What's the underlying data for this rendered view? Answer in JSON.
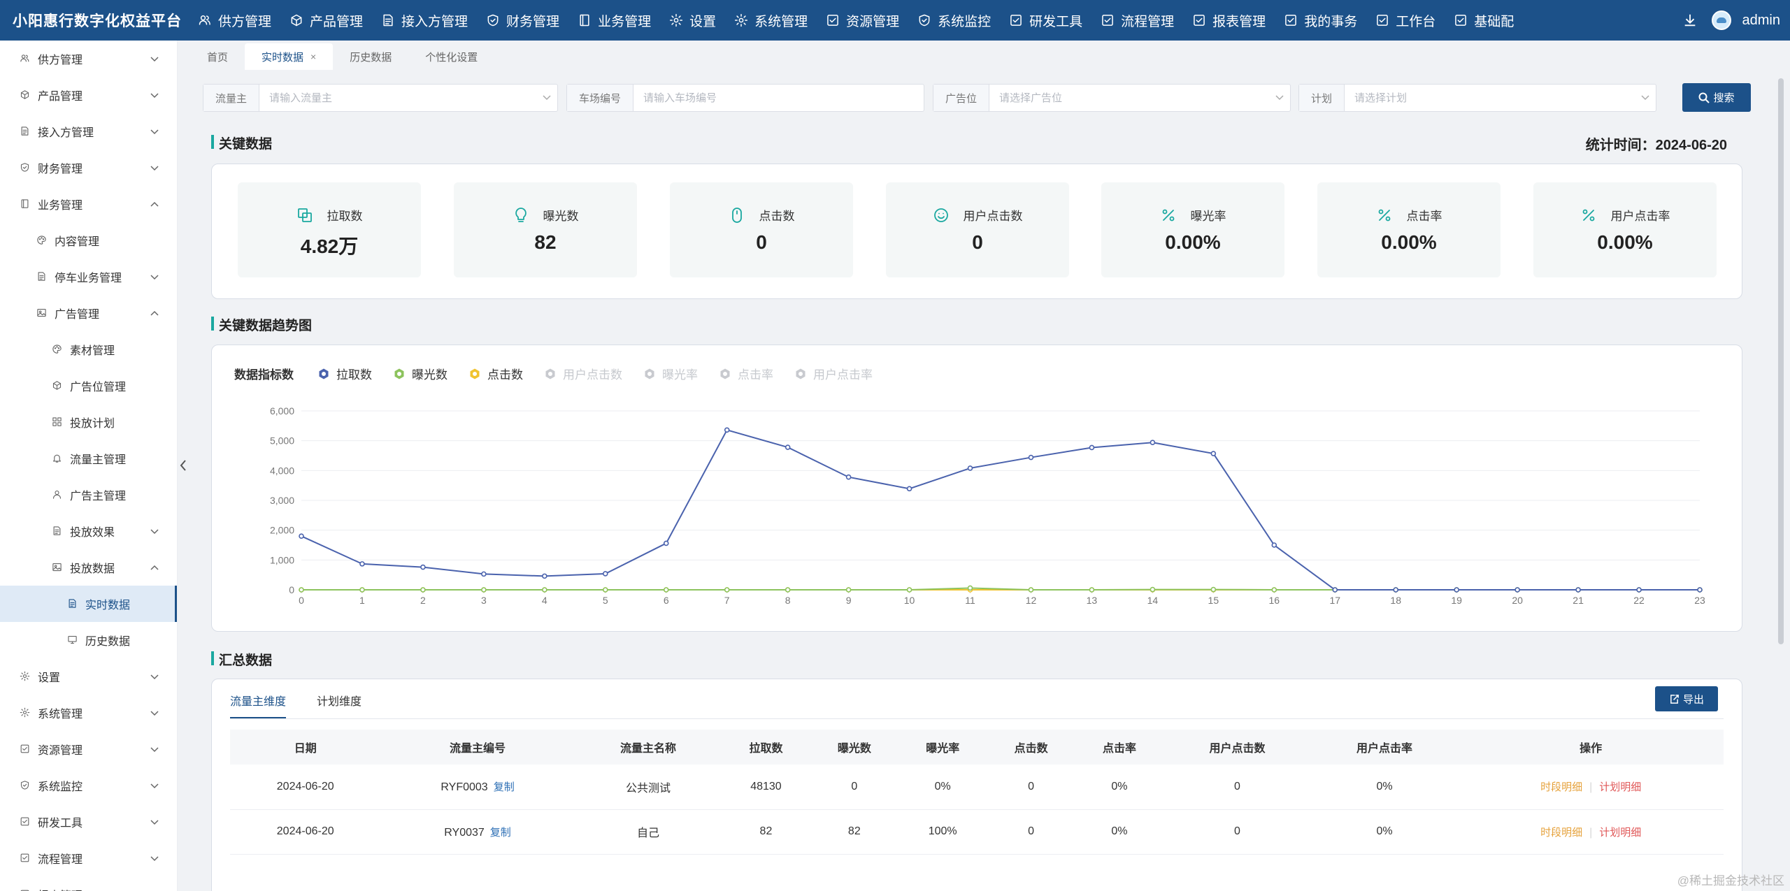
{
  "app": {
    "brand": "小阳惠行数字化权益平台",
    "username": "admin"
  },
  "top_nav": [
    {
      "label": "供方管理",
      "icon": "users-icon"
    },
    {
      "label": "产品管理",
      "icon": "cube-icon"
    },
    {
      "label": "接入方管理",
      "icon": "doc-icon"
    },
    {
      "label": "财务管理",
      "icon": "shield-icon"
    },
    {
      "label": "业务管理",
      "icon": "book-icon"
    },
    {
      "label": "设置",
      "icon": "gear-icon"
    },
    {
      "label": "系统管理",
      "icon": "gear-icon"
    },
    {
      "label": "资源管理",
      "icon": "checkbox-icon"
    },
    {
      "label": "系统监控",
      "icon": "shield-icon"
    },
    {
      "label": "研发工具",
      "icon": "checkbox-icon"
    },
    {
      "label": "流程管理",
      "icon": "checkbox-icon"
    },
    {
      "label": "报表管理",
      "icon": "checkbox-icon"
    },
    {
      "label": "我的事务",
      "icon": "checkbox-icon"
    },
    {
      "label": "工作台",
      "icon": "checkbox-icon"
    },
    {
      "label": "基础配",
      "icon": "checkbox-icon"
    }
  ],
  "sidebar": {
    "items": [
      {
        "label": "供方管理",
        "level": 0,
        "icon": "users-icon",
        "chevron": "down"
      },
      {
        "label": "产品管理",
        "level": 0,
        "icon": "cube-icon",
        "chevron": "down"
      },
      {
        "label": "接入方管理",
        "level": 0,
        "icon": "doc-icon",
        "chevron": "down"
      },
      {
        "label": "财务管理",
        "level": 0,
        "icon": "shield-icon",
        "chevron": "down"
      },
      {
        "label": "业务管理",
        "level": 0,
        "icon": "book-icon",
        "chevron": "up"
      },
      {
        "label": "内容管理",
        "level": 1,
        "icon": "palette-icon",
        "chevron": ""
      },
      {
        "label": "停车业务管理",
        "level": 1,
        "icon": "doc-icon",
        "chevron": "down"
      },
      {
        "label": "广告管理",
        "level": 1,
        "icon": "image-icon",
        "chevron": "up"
      },
      {
        "label": "素材管理",
        "level": 2,
        "icon": "palette-icon",
        "chevron": ""
      },
      {
        "label": "广告位管理",
        "level": 2,
        "icon": "cube-icon",
        "chevron": ""
      },
      {
        "label": "投放计划",
        "level": 2,
        "icon": "grid-icon",
        "chevron": ""
      },
      {
        "label": "流量主管理",
        "level": 2,
        "icon": "bell-icon",
        "chevron": ""
      },
      {
        "label": "广告主管理",
        "level": 2,
        "icon": "user-icon",
        "chevron": ""
      },
      {
        "label": "投放效果",
        "level": 2,
        "icon": "doc-icon",
        "chevron": "down"
      },
      {
        "label": "投放数据",
        "level": 2,
        "icon": "image-icon",
        "chevron": "up"
      },
      {
        "label": "实时数据",
        "level": 3,
        "icon": "doc-icon",
        "chevron": "",
        "active": true
      },
      {
        "label": "历史数据",
        "level": 3,
        "icon": "monitor-icon",
        "chevron": ""
      },
      {
        "label": "设置",
        "level": 0,
        "icon": "gear-icon",
        "chevron": "down"
      },
      {
        "label": "系统管理",
        "level": 0,
        "icon": "gear-icon",
        "chevron": "down"
      },
      {
        "label": "资源管理",
        "level": 0,
        "icon": "checkbox-icon",
        "chevron": "down"
      },
      {
        "label": "系统监控",
        "level": 0,
        "icon": "shield-icon",
        "chevron": "down"
      },
      {
        "label": "研发工具",
        "level": 0,
        "icon": "checkbox-icon",
        "chevron": "down"
      },
      {
        "label": "流程管理",
        "level": 0,
        "icon": "checkbox-icon",
        "chevron": "down"
      },
      {
        "label": "报表管理",
        "level": 0,
        "icon": "checkbox-icon",
        "chevron": "down"
      }
    ]
  },
  "tabs": [
    {
      "label": "首页",
      "active": false,
      "closable": false
    },
    {
      "label": "实时数据",
      "active": true,
      "closable": true
    },
    {
      "label": "历史数据",
      "active": false,
      "closable": false
    },
    {
      "label": "个性化设置",
      "active": false,
      "closable": false
    }
  ],
  "filters": {
    "traffic_owner": {
      "label": "流量主",
      "placeholder": "请输入流量主"
    },
    "parking_no": {
      "label": "车场编号",
      "placeholder": "请输入车场编号"
    },
    "ad_slot": {
      "label": "广告位",
      "placeholder": "请选择广告位"
    },
    "plan": {
      "label": "计划",
      "placeholder": "请选择计划"
    },
    "search_label": "搜索"
  },
  "key_data": {
    "title": "关键数据",
    "stat_time": "统计时间：2024-06-20",
    "cards": [
      {
        "label": "拉取数",
        "value": "4.82万",
        "icon": "copy-icon"
      },
      {
        "label": "曝光数",
        "value": "82",
        "icon": "bulb-icon"
      },
      {
        "label": "点击数",
        "value": "0",
        "icon": "mouse-icon"
      },
      {
        "label": "用户点击数",
        "value": "0",
        "icon": "smile-icon"
      },
      {
        "label": "曝光率",
        "value": "0.00%",
        "icon": "percent-icon"
      },
      {
        "label": "点击率",
        "value": "0.00%",
        "icon": "percent-icon"
      },
      {
        "label": "用户点击率",
        "value": "0.00%",
        "icon": "percent-icon"
      }
    ]
  },
  "trend": {
    "title": "关键数据趋势图",
    "legend_title": "数据指标数",
    "legend": [
      {
        "name": "拉取数",
        "color": "#4a62ad",
        "enabled": true
      },
      {
        "name": "曝光数",
        "color": "#8dc35d",
        "enabled": true
      },
      {
        "name": "点击数",
        "color": "#f0c330",
        "enabled": true
      },
      {
        "name": "用户点击数",
        "color": "#c8cacf",
        "enabled": false
      },
      {
        "name": "曝光率",
        "color": "#c8cacf",
        "enabled": false
      },
      {
        "name": "点击率",
        "color": "#c8cacf",
        "enabled": false
      },
      {
        "name": "用户点击率",
        "color": "#c8cacf",
        "enabled": false
      }
    ]
  },
  "chart_data": {
    "type": "line",
    "title": "",
    "xlabel": "",
    "ylabel": "",
    "x": [
      0,
      1,
      2,
      3,
      4,
      5,
      6,
      7,
      8,
      9,
      10,
      11,
      12,
      13,
      14,
      15,
      16,
      17,
      18,
      19,
      20,
      21,
      22,
      23
    ],
    "ylim": [
      0,
      6000
    ],
    "yticks": [
      0,
      1000,
      2000,
      3000,
      4000,
      5000,
      6000
    ],
    "ytick_labels": [
      "0",
      "1,000",
      "2,000",
      "3,000",
      "4,000",
      "5,000",
      "6,000"
    ],
    "grid": true,
    "series": [
      {
        "name": "拉取数",
        "color": "#4a62ad",
        "values": [
          1800,
          870,
          760,
          530,
          460,
          540,
          1560,
          5360,
          4780,
          3780,
          3390,
          4080,
          4440,
          4770,
          4940,
          4570,
          1500,
          0,
          0,
          0,
          0,
          0,
          0,
          0
        ]
      },
      {
        "name": "曝光数",
        "color": "#8dc35d",
        "values": [
          0,
          0,
          0,
          0,
          0,
          0,
          0,
          0,
          0,
          0,
          0,
          60,
          0,
          0,
          10,
          10,
          0,
          0,
          0,
          0,
          0,
          0,
          0,
          0
        ]
      },
      {
        "name": "点击数",
        "color": "#f0c330",
        "values": [
          0,
          0,
          0,
          0,
          0,
          0,
          0,
          0,
          0,
          0,
          0,
          0,
          0,
          0,
          0,
          0,
          0,
          0,
          0,
          0,
          0,
          0,
          0,
          0
        ]
      }
    ]
  },
  "summary": {
    "title": "汇总数据",
    "subtabs": [
      {
        "label": "流量主维度",
        "active": true
      },
      {
        "label": "计划维度",
        "active": false
      }
    ],
    "export_label": "导出",
    "columns": [
      "日期",
      "流量主编号",
      "流量主名称",
      "拉取数",
      "曝光数",
      "曝光率",
      "点击数",
      "点击率",
      "用户点击数",
      "用户点击率",
      "操作"
    ],
    "copy_label": "复制",
    "op_time_detail": "时段明细",
    "op_plan_detail": "计划明细",
    "rows": [
      {
        "date": "2024-06-20",
        "owner_no": "RYF0003",
        "owner_name": "公共测试",
        "pull": "48130",
        "exposure": "0",
        "exposure_rate": "0%",
        "clicks": "0",
        "click_rate": "0%",
        "user_clicks": "0",
        "user_click_rate": "0%"
      },
      {
        "date": "2024-06-20",
        "owner_no": "RY0037",
        "owner_name": "自己",
        "pull": "82",
        "exposure": "82",
        "exposure_rate": "100%",
        "clicks": "0",
        "click_rate": "0%",
        "user_clicks": "0",
        "user_click_rate": "0%"
      }
    ]
  },
  "watermark": "@稀土掘金技术社区"
}
